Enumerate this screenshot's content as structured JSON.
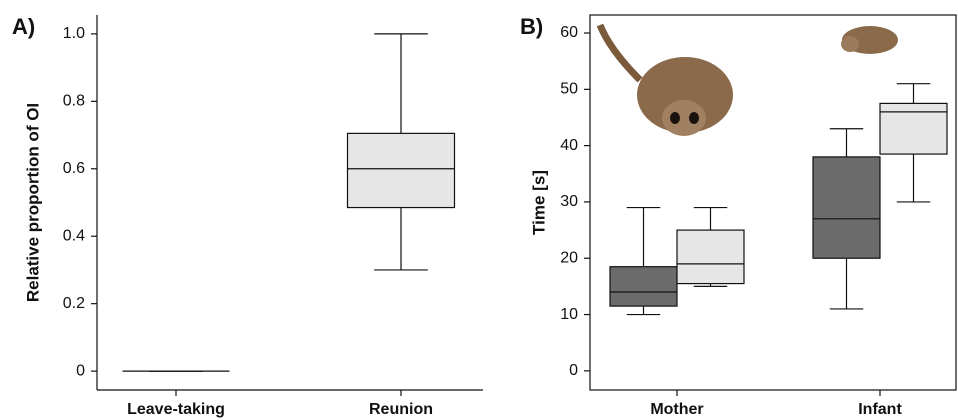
{
  "chart_data": [
    {
      "type": "box",
      "panel_label": "A)",
      "ylabel": "Relative proportion of OI",
      "categories": [
        "Leave-taking",
        "Reunion"
      ],
      "series": [
        {
          "color": "#e6e6e6",
          "values": [
            {
              "min": 0,
              "q1": 0,
              "median": 0,
              "q3": 0,
              "max": 0
            },
            {
              "min": 0.3,
              "q1": 0.485,
              "median": 0.6,
              "q3": 0.705,
              "max": 1
            }
          ]
        }
      ],
      "ylim": [
        -0.056,
        1.056
      ],
      "yticks": [
        0,
        0.2,
        0.4,
        0.6,
        0.8,
        {
          "value": 1,
          "label": "1.0"
        }
      ]
    },
    {
      "type": "box",
      "panel_label": "B)",
      "ylabel": "Time [s]",
      "categories": [
        "Mother",
        "Infant"
      ],
      "series": [
        {
          "color": "#6b6b6b",
          "values": [
            {
              "min": 10,
              "q1": 11.5,
              "median": 14,
              "q3": 18.5,
              "max": 29
            },
            {
              "min": 11,
              "q1": 20,
              "median": 27,
              "q3": 38,
              "max": 43
            }
          ]
        },
        {
          "color": "#e6e6e6",
          "values": [
            {
              "min": 15,
              "q1": 15.5,
              "median": 19,
              "q3": 25,
              "max": 29
            },
            {
              "min": 30,
              "q1": 38.5,
              "median": 46,
              "q3": 47.5,
              "max": 51
            }
          ]
        }
      ],
      "ylim": [
        -3.4,
        63.2
      ],
      "yticks": [
        0,
        10,
        20,
        30,
        40,
        50,
        60
      ]
    }
  ]
}
